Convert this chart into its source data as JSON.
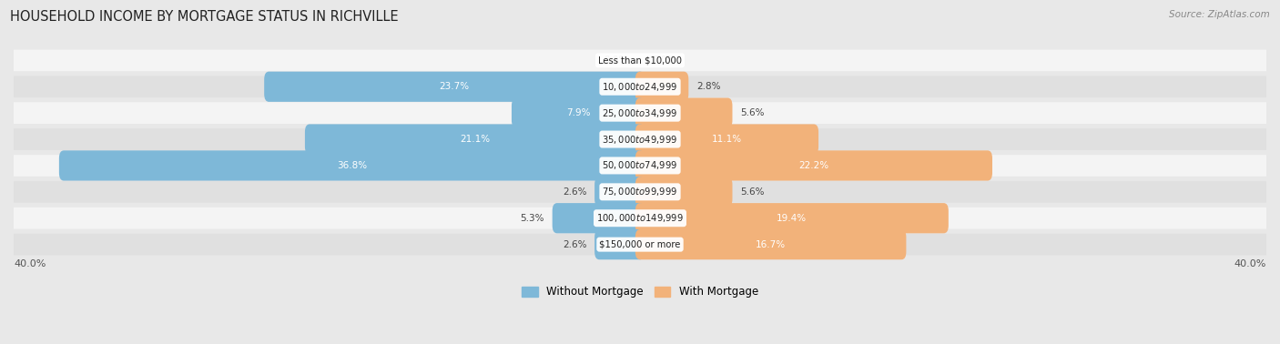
{
  "title": "HOUSEHOLD INCOME BY MORTGAGE STATUS IN RICHVILLE",
  "source": "Source: ZipAtlas.com",
  "categories": [
    "Less than $10,000",
    "$10,000 to $24,999",
    "$25,000 to $34,999",
    "$35,000 to $49,999",
    "$50,000 to $74,999",
    "$75,000 to $99,999",
    "$100,000 to $149,999",
    "$150,000 or more"
  ],
  "without_mortgage": [
    0.0,
    23.7,
    7.9,
    21.1,
    36.8,
    2.6,
    5.3,
    2.6
  ],
  "with_mortgage": [
    0.0,
    2.8,
    5.6,
    11.1,
    22.2,
    5.6,
    19.4,
    16.7
  ],
  "color_without": "#7eb8d8",
  "color_with": "#f2b27a",
  "axis_limit": 40.0,
  "bg_color": "#e8e8e8",
  "row_colors": [
    "#f4f4f4",
    "#e0e0e0"
  ]
}
